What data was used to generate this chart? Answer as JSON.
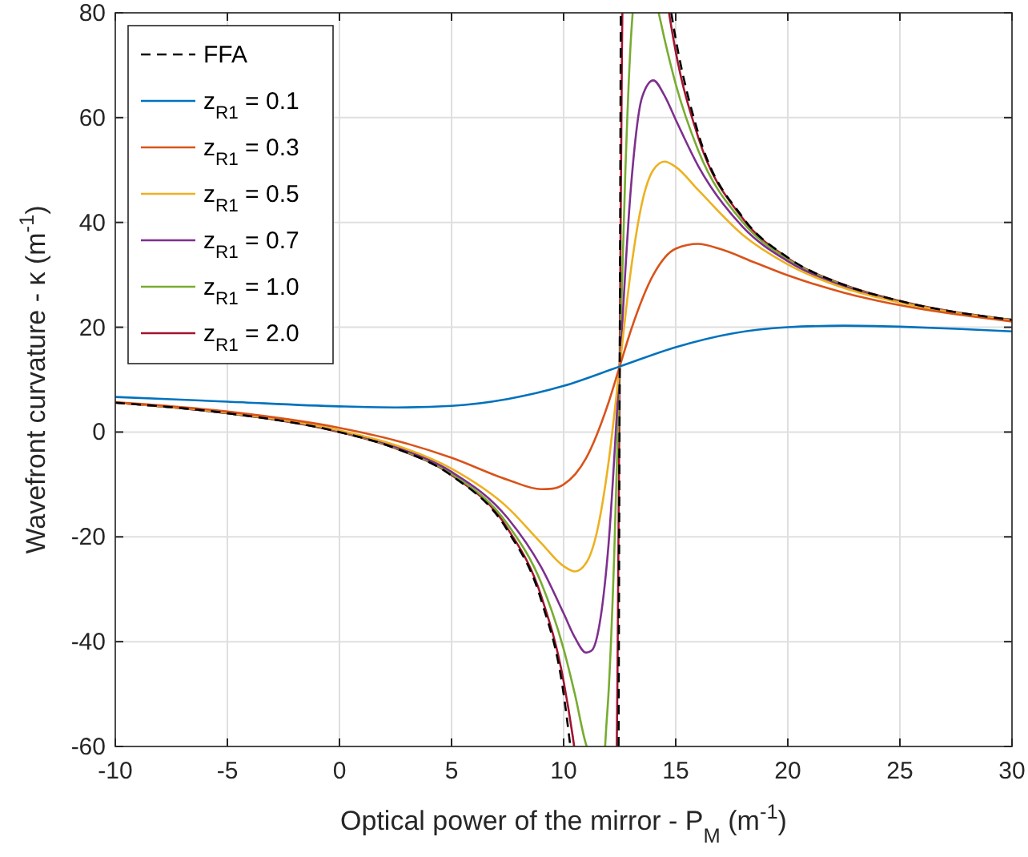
{
  "chart_data": {
    "type": "line",
    "xlabel": "Optical power of the mirror  -  P$_{M}$ (m$^{-1}$)",
    "ylabel": "Wavefront curvature  - κ (m$^{-1}$)",
    "xlim": [
      -10,
      30
    ],
    "xticks": [
      -10,
      -5,
      0,
      5,
      10,
      15,
      20,
      25,
      30
    ],
    "ylim": [
      -60,
      80
    ],
    "yticks": [
      -60,
      -40,
      -20,
      0,
      20,
      40,
      60,
      80
    ],
    "grid": true,
    "legend": "top left",
    "series": [
      {
        "name": "FFA",
        "color": "#000000",
        "line_style": "dashed",
        "x": [
          -10,
          -5,
          0,
          2.5,
          5,
          7.5,
          9,
          10,
          10.3,
          11,
          12.45,
          12.55,
          14,
          14.8,
          15,
          16,
          18,
          20,
          22.5,
          25,
          30
        ],
        "values": [
          5.6,
          3.6,
          0,
          -3.1,
          -8.3,
          -18.8,
          -32.1,
          -50,
          -60,
          null,
          -60,
          80,
          null,
          80,
          75,
          57.1,
          40.9,
          33.3,
          28.1,
          25,
          21.4
        ]
      },
      {
        "name": "z$_{R1}$ = 0.1",
        "color": "#0072bd",
        "x": [
          -10,
          -5,
          0,
          2.5,
          5,
          7.5,
          10,
          12.5,
          15,
          17.5,
          20,
          22.5,
          25,
          27.5,
          30
        ],
        "values": [
          6.7,
          5.8,
          4.9,
          4.7,
          5,
          6.3,
          8.8,
          12.5,
          16.2,
          18.8,
          20,
          20.3,
          20.1,
          19.7,
          19.2
        ]
      },
      {
        "name": "z$_{R1}$ = 0.3",
        "color": "#d95319",
        "x": [
          -10,
          -5,
          0,
          2.5,
          5,
          7.5,
          9,
          9.5,
          10,
          11,
          12,
          12.5,
          13,
          14,
          15,
          16,
          17,
          18.5,
          20,
          22.5,
          25,
          30
        ],
        "values": [
          5.7,
          3.9,
          0.8,
          -1.6,
          -4.9,
          -9.1,
          -10.9,
          -10.8,
          -10,
          -5,
          5.6,
          12.5,
          19.4,
          30,
          35,
          35.9,
          34.9,
          32.4,
          29.9,
          26.6,
          24.2,
          21.1
        ]
      },
      {
        "name": "z$_{R1}$ = 0.5",
        "color": "#edb120",
        "x": [
          -10,
          -5,
          0,
          2.5,
          5,
          7.5,
          9,
          10,
          10.5,
          11,
          11.5,
          12,
          12.5,
          13,
          13.5,
          14,
          14.5,
          15,
          16,
          18,
          20,
          22.5,
          25,
          30
        ],
        "values": [
          5.6,
          3.7,
          0.3,
          -2.5,
          -7,
          -14.4,
          -21.2,
          -25.6,
          -26.6,
          -25,
          -18.8,
          -5.9,
          12.5,
          30.9,
          43.8,
          50,
          51.6,
          50.6,
          46.2,
          37.6,
          32,
          27.5,
          24.7,
          21.3
        ]
      },
      {
        "name": "z$_{R1}$ = 0.7",
        "color": "#7e2f8e",
        "x": [
          -10,
          -5,
          0,
          2.5,
          5,
          7.5,
          9,
          10,
          10.5,
          11,
          11.25,
          11.5,
          12,
          12.5,
          13,
          13.5,
          14,
          14.5,
          15,
          16,
          18,
          20,
          22.5,
          25,
          30
        ],
        "values": [
          5.6,
          3.6,
          0.2,
          -2.8,
          -7.6,
          -16.4,
          -25.8,
          -34.6,
          -39.2,
          -42.1,
          -41.7,
          -38.9,
          -21.6,
          12.5,
          46.6,
          63.9,
          67.1,
          64.2,
          59.6,
          50.8,
          39.1,
          32.6,
          27.8,
          24.8,
          21.4
        ]
      },
      {
        "name": "z$_{R1}$ = 1.0",
        "color": "#77ac30",
        "x": [
          -10,
          -5,
          0,
          2.5,
          5,
          7.5,
          9,
          10,
          10.5,
          11,
          11.03,
          11.4,
          11.85,
          11.9,
          12,
          12.25,
          12.5,
          12.75,
          13,
          13.08,
          13.6,
          14.24,
          14.5,
          15,
          16,
          18,
          20,
          22.5,
          25,
          30
        ],
        "values": [
          5.6,
          3.6,
          0.1,
          -3,
          -8,
          -17.6,
          -28.8,
          -41.4,
          -50,
          -59.6,
          -60,
          null,
          -60,
          -56.4,
          -50,
          -24.3,
          12.5,
          49.3,
          75,
          80,
          null,
          80,
          75,
          66.4,
          53.8,
          40,
          33,
          28,
          24.9,
          21.4
        ]
      },
      {
        "name": "z$_{R1}$ = 2.0",
        "color": "#a2142f",
        "x": [
          -10,
          -5,
          0,
          2.5,
          5,
          7.5,
          9,
          10,
          10.4,
          10.47,
          11.5,
          12.37,
          12.4,
          12.5,
          12.6,
          12.62,
          13.5,
          14.7,
          14.8,
          15,
          16,
          18,
          20,
          22.5,
          25,
          30
        ],
        "values": [
          5.6,
          3.6,
          0,
          -3.1,
          -8.2,
          -18.4,
          -31.3,
          -47.6,
          -57.9,
          -60,
          null,
          -60,
          -47.5,
          12.5,
          72.6,
          80,
          null,
          80,
          77.4,
          72.6,
          56.3,
          40.7,
          33.2,
          28.1,
          25,
          21.4
        ]
      }
    ]
  }
}
